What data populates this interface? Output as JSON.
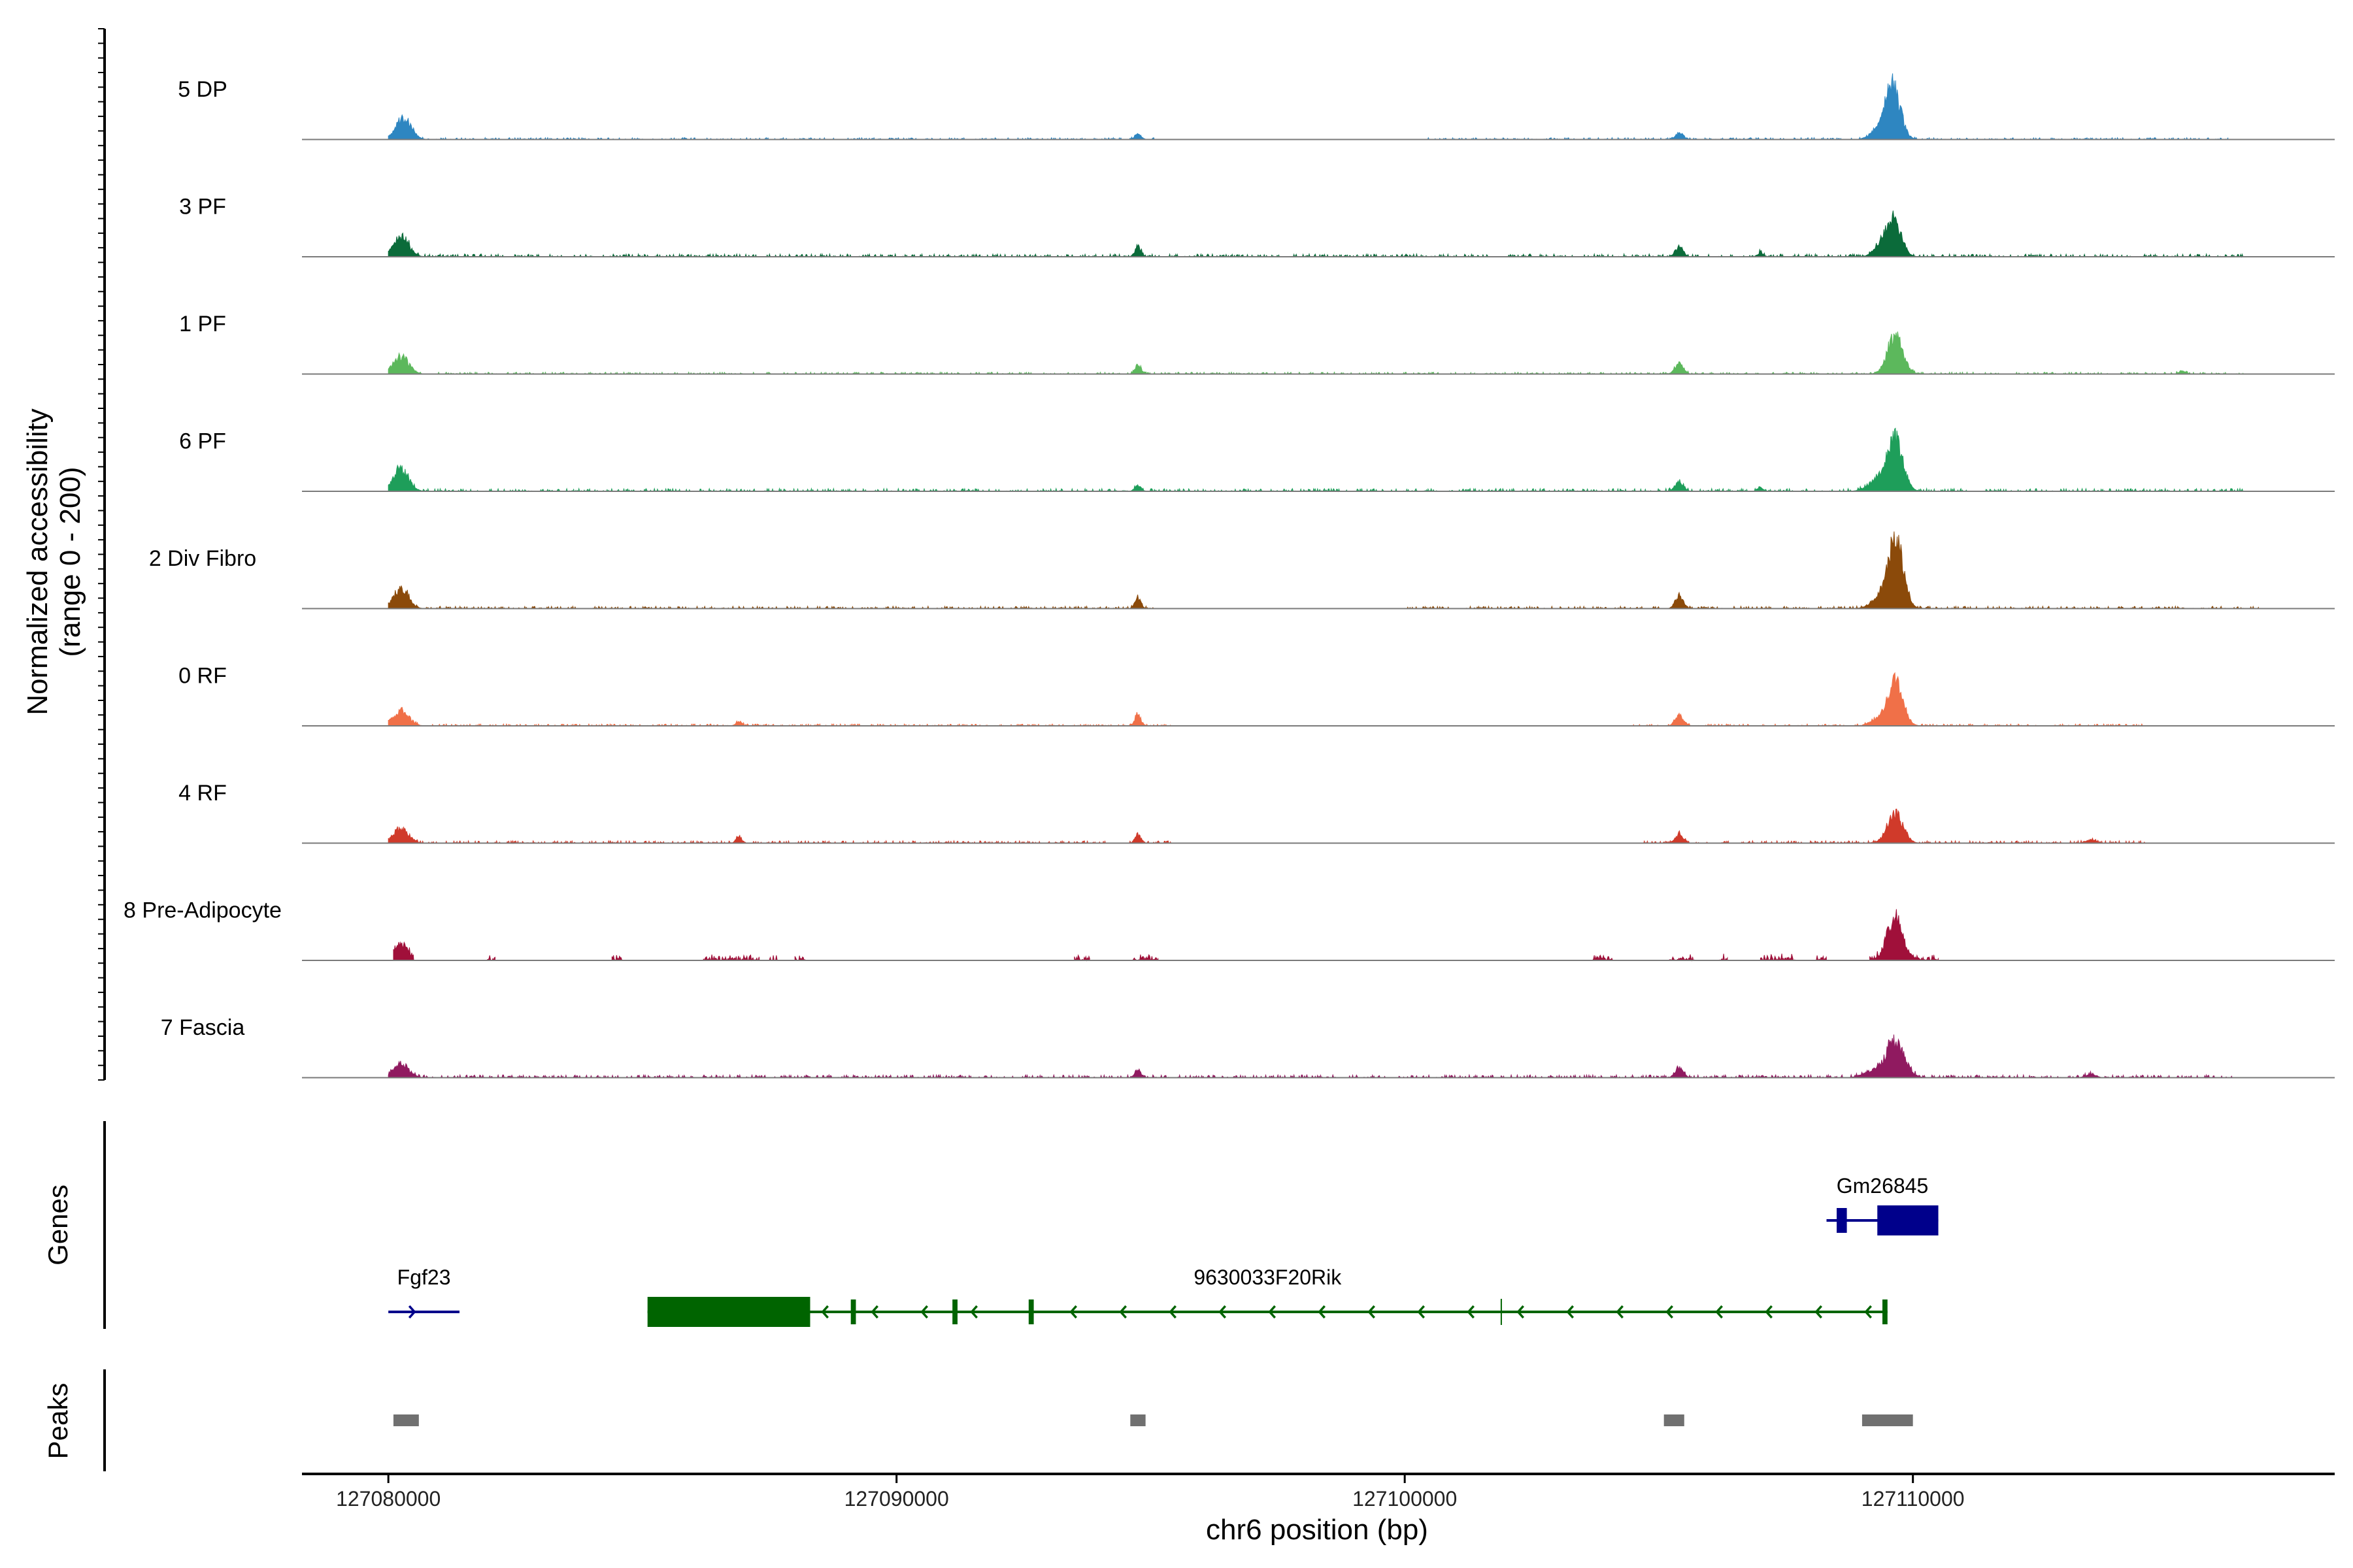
{
  "chart_data": {
    "type": "area",
    "chromosome": "chr6",
    "region": [
      127080000,
      127118000
    ],
    "xlim": [
      127078300,
      127118300
    ],
    "xlabel": "chr6 position (bp)",
    "ylabel_line1": "Normalized accessibility",
    "ylabel_line2": "(range 0 - 200)",
    "ylim": [
      0,
      200
    ],
    "x_ticks": [
      127080000,
      127090000,
      127100000,
      127110000
    ],
    "x_tick_labels": [
      "127080000",
      "127090000",
      "127100000",
      "127110000"
    ],
    "tracks": [
      {
        "name": "5 DP",
        "color": "#2E86C1",
        "peaks": [
          [
            127080300,
            55,
            150
          ],
          [
            127094750,
            15,
            60
          ],
          [
            127105400,
            15,
            80
          ],
          [
            127109600,
            135,
            150
          ],
          [
            127109300,
            20,
            150
          ]
        ],
        "noise": 4,
        "spans": [
          [
            127080000,
            127095100
          ],
          [
            127100300,
            127116200
          ]
        ]
      },
      {
        "name": "3 PF",
        "color": "#0B6B3A",
        "peaks": [
          [
            127080250,
            50,
            150
          ],
          [
            127094750,
            25,
            60
          ],
          [
            127105400,
            22,
            80
          ],
          [
            127109600,
            100,
            150
          ],
          [
            127109300,
            15,
            120
          ],
          [
            127107000,
            10,
            60
          ]
        ],
        "noise": 6,
        "spans": [
          [
            127080000,
            127116500
          ]
        ]
      },
      {
        "name": "1 PF",
        "color": "#5CB85C",
        "peaks": [
          [
            127080250,
            45,
            150
          ],
          [
            127094750,
            22,
            60
          ],
          [
            127105400,
            28,
            80
          ],
          [
            127109650,
            95,
            150
          ],
          [
            127115300,
            8,
            60
          ]
        ],
        "noise": 4,
        "spans": [
          [
            127080000,
            127116500
          ]
        ]
      },
      {
        "name": "6 PF",
        "color": "#1E9E5A",
        "peaks": [
          [
            127080250,
            55,
            150
          ],
          [
            127094750,
            15,
            60
          ],
          [
            127105400,
            25,
            80
          ],
          [
            127109650,
            130,
            150
          ],
          [
            127109300,
            30,
            180
          ],
          [
            127107000,
            10,
            60
          ]
        ],
        "noise": 6,
        "spans": [
          [
            127080000,
            127116500
          ]
        ]
      },
      {
        "name": "2 Div Fibro",
        "color": "#8B4A0A",
        "peaks": [
          [
            127080250,
            50,
            150
          ],
          [
            127094750,
            25,
            60
          ],
          [
            127105400,
            30,
            80
          ],
          [
            127109650,
            180,
            150
          ],
          [
            127109300,
            20,
            160
          ]
        ],
        "noise": 5,
        "spans": [
          [
            127080000,
            127095100
          ],
          [
            127100000,
            127116800
          ]
        ]
      },
      {
        "name": "0 RF",
        "color": "#F07048",
        "peaks": [
          [
            127080250,
            40,
            150
          ],
          [
            127094750,
            28,
            60
          ],
          [
            127105400,
            25,
            80
          ],
          [
            127109650,
            110,
            150
          ],
          [
            127109300,
            15,
            150
          ],
          [
            127086900,
            10,
            60
          ]
        ],
        "noise": 4,
        "spans": [
          [
            127080000,
            127095400
          ],
          [
            127104500,
            127114600
          ]
        ]
      },
      {
        "name": "4 RF",
        "color": "#D03A2A",
        "peaks": [
          [
            127080250,
            35,
            150
          ],
          [
            127094750,
            20,
            60
          ],
          [
            127105400,
            22,
            80
          ],
          [
            127109650,
            75,
            150
          ],
          [
            127086900,
            15,
            60
          ],
          [
            127113500,
            8,
            100
          ]
        ],
        "noise": 5,
        "spans": [
          [
            127080000,
            127095400
          ],
          [
            127104700,
            127114600
          ]
        ]
      },
      {
        "name": "8 Pre-Adipocyte",
        "color": "#A0103A",
        "peaks": [
          [
            127080250,
            40,
            120
          ],
          [
            127109650,
            105,
            150
          ]
        ],
        "noise": 0,
        "spans": [
          [
            127080100,
            127080500
          ],
          [
            127081950,
            127082100
          ],
          [
            127084400,
            127084600
          ],
          [
            127086200,
            127087300
          ],
          [
            127087500,
            127087650
          ],
          [
            127088000,
            127088200
          ],
          [
            127093500,
            127093800
          ],
          [
            127094650,
            127095150
          ],
          [
            127103700,
            127104100
          ],
          [
            127105200,
            127105700
          ],
          [
            127106200,
            127106350
          ],
          [
            127107000,
            127107700
          ],
          [
            127108100,
            127108300
          ],
          [
            127109150,
            127110500
          ]
        ],
        "spiky": true
      },
      {
        "name": "7 Fascia",
        "color": "#901A60",
        "peaks": [
          [
            127080250,
            35,
            150
          ],
          [
            127094750,
            20,
            60
          ],
          [
            127105400,
            25,
            80
          ],
          [
            127109650,
            95,
            180
          ],
          [
            127109200,
            15,
            180
          ],
          [
            127113500,
            8,
            100
          ]
        ],
        "noise": 6,
        "spans": [
          [
            127080000,
            127116300
          ]
        ]
      }
    ],
    "genes": [
      {
        "name": "Fgf23",
        "strand": "+",
        "start": 127080000,
        "end": 127081400,
        "exons": [],
        "color": "#00008B",
        "row": 2
      },
      {
        "name": "9630033F20Rik",
        "strand": "-",
        "start": 127085100,
        "end": 127109500,
        "exons": [
          [
            127085100,
            127088300
          ],
          [
            127089100,
            127089200
          ],
          [
            127091100,
            127091200
          ],
          [
            127092600,
            127092700
          ],
          [
            127109400,
            127109500
          ]
        ],
        "intron_marks": [
          127101900
        ],
        "color": "#006400",
        "row": 2
      },
      {
        "name": "Gm26845",
        "strand": "+",
        "start": 127108300,
        "end": 127110500,
        "exons": [
          [
            127108500,
            127108700
          ],
          [
            127109300,
            127110500
          ]
        ],
        "color": "#00008B",
        "row": 1
      }
    ],
    "peaks_track": [
      [
        127080100,
        127080600
      ],
      [
        127094600,
        127094900
      ],
      [
        127105100,
        127105500
      ],
      [
        127109000,
        127110000
      ]
    ],
    "peaks_color": "#707070",
    "genes_title": "Genes",
    "peaks_title": "Peaks"
  }
}
